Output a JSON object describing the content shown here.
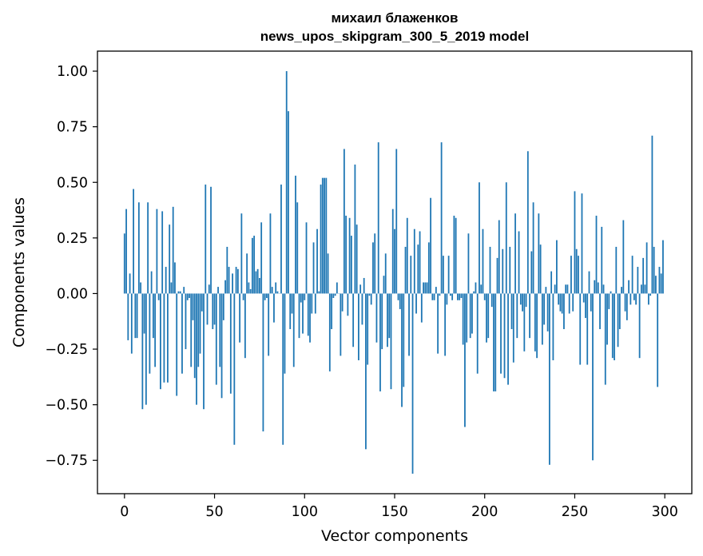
{
  "chart_data": {
    "type": "bar",
    "title": "михаил блаженков",
    "subtitle": "news_upos_skipgram_300_5_2019 model",
    "xlabel": "Vector components",
    "ylabel": "Components values",
    "xlim": [
      -15,
      315
    ],
    "ylim": [
      -0.9,
      1.09
    ],
    "xticks": [
      0,
      50,
      100,
      150,
      200,
      250,
      300
    ],
    "xtick_labels": [
      "0",
      "50",
      "100",
      "150",
      "200",
      "250",
      "300"
    ],
    "yticks": [
      -0.75,
      -0.5,
      -0.25,
      0.0,
      0.25,
      0.5,
      0.75,
      1.0
    ],
    "ytick_labels": [
      "−0.75",
      "−0.50",
      "−0.25",
      "0.00",
      "0.25",
      "0.50",
      "0.75",
      "1.00"
    ],
    "grid": false,
    "bar_color": "#1f77b4",
    "categories_range": [
      0,
      299
    ],
    "values": [
      0.27,
      0.38,
      -0.21,
      0.09,
      -0.27,
      0.47,
      -0.2,
      -0.2,
      0.41,
      0.05,
      -0.52,
      -0.18,
      -0.5,
      0.41,
      -0.36,
      0.1,
      -0.2,
      -0.33,
      0.38,
      -0.03,
      -0.43,
      0.37,
      -0.4,
      0.12,
      -0.4,
      0.31,
      0.05,
      0.39,
      0.14,
      -0.46,
      0.01,
      0.01,
      -0.36,
      0.03,
      -0.25,
      -0.03,
      -0.02,
      -0.33,
      -0.12,
      -0.38,
      -0.5,
      -0.33,
      -0.27,
      -0.08,
      -0.52,
      0.49,
      -0.14,
      0.04,
      0.48,
      -0.16,
      -0.14,
      -0.41,
      0.03,
      -0.33,
      -0.47,
      -0.12,
      0.06,
      0.21,
      0.12,
      -0.45,
      0.09,
      -0.68,
      0.12,
      0.11,
      -0.22,
      0.36,
      -0.03,
      -0.29,
      0.18,
      0.05,
      0.02,
      0.25,
      0.26,
      0.1,
      0.11,
      0.07,
      0.32,
      -0.62,
      -0.03,
      -0.02,
      -0.28,
      0.36,
      0.03,
      -0.13,
      0.05,
      0.01,
      0.0,
      0.49,
      -0.68,
      -0.36,
      1.0,
      0.82,
      -0.16,
      -0.09,
      -0.33,
      0.53,
      0.41,
      -0.2,
      -0.04,
      -0.18,
      -0.03,
      0.32,
      -0.19,
      -0.22,
      -0.09,
      0.23,
      -0.09,
      0.29,
      0.01,
      0.49,
      0.52,
      0.52,
      0.52,
      0.18,
      -0.35,
      -0.16,
      -0.02,
      -0.01,
      0.05,
      0.0,
      -0.28,
      -0.08,
      0.65,
      0.35,
      -0.1,
      0.34,
      0.26,
      -0.24,
      0.58,
      0.31,
      -0.3,
      0.04,
      -0.14,
      0.07,
      -0.7,
      -0.32,
      -0.01,
      -0.05,
      0.23,
      0.27,
      -0.22,
      0.68,
      -0.44,
      -0.25,
      0.08,
      0.18,
      -0.24,
      -0.2,
      -0.43,
      0.38,
      0.29,
      0.65,
      -0.03,
      -0.07,
      -0.51,
      -0.42,
      0.21,
      0.34,
      -0.28,
      0.17,
      -0.81,
      0.29,
      -0.09,
      0.22,
      0.28,
      -0.13,
      0.05,
      0.05,
      0.05,
      0.23,
      0.43,
      -0.03,
      -0.03,
      0.03,
      -0.27,
      -0.01,
      0.68,
      0.17,
      -0.28,
      -0.05,
      0.17,
      -0.01,
      -0.03,
      0.35,
      0.34,
      -0.03,
      -0.03,
      -0.02,
      -0.23,
      -0.6,
      -0.22,
      0.27,
      -0.2,
      -0.18,
      0.01,
      0.05,
      -0.36,
      0.5,
      0.04,
      0.29,
      -0.03,
      -0.22,
      -0.2,
      0.21,
      -0.06,
      -0.44,
      -0.44,
      0.16,
      0.33,
      -0.36,
      0.2,
      -0.38,
      0.5,
      -0.41,
      0.21,
      -0.16,
      -0.31,
      0.36,
      -0.2,
      0.28,
      -0.05,
      -0.08,
      -0.26,
      -0.06,
      0.64,
      -0.2,
      0.19,
      0.41,
      -0.26,
      -0.29,
      0.36,
      0.22,
      -0.23,
      -0.14,
      0.03,
      -0.17,
      -0.77,
      0.1,
      -0.3,
      0.04,
      0.24,
      -0.05,
      -0.08,
      -0.09,
      -0.16,
      0.04,
      0.04,
      -0.09,
      0.17,
      -0.08,
      0.46,
      0.2,
      0.17,
      -0.32,
      0.45,
      -0.04,
      -0.11,
      -0.32,
      0.1,
      -0.08,
      -0.75,
      0.06,
      0.35,
      0.05,
      -0.16,
      0.3,
      0.04,
      -0.41,
      -0.23,
      -0.07,
      0.01,
      -0.29,
      -0.3,
      0.21,
      -0.24,
      -0.16,
      0.03,
      0.33,
      -0.08,
      -0.12,
      0.06,
      -0.05,
      0.17,
      -0.03,
      -0.05,
      0.12,
      -0.29,
      0.04,
      0.16,
      0.04,
      0.23,
      -0.05,
      -0.01,
      0.71,
      0.21,
      0.08,
      -0.42,
      0.12,
      0.09,
      0.24
    ]
  }
}
